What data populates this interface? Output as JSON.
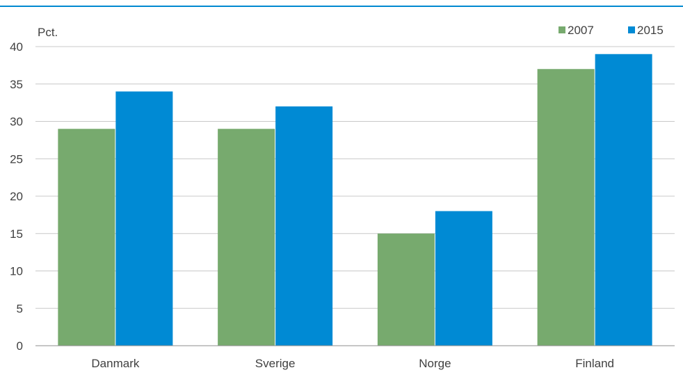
{
  "colors": {
    "top_rule": "#0089d0",
    "grid": "#c8c8c8",
    "axis": "#8c8c8c",
    "text": "#404040"
  },
  "chart_data": {
    "type": "bar",
    "title": "",
    "xlabel": "",
    "ylabel": "Pct.",
    "categories": [
      "Danmark",
      "Sverige",
      "Norge",
      "Finland"
    ],
    "series": [
      {
        "name": "2007",
        "color": "#77aa6e",
        "values": [
          29,
          29,
          15,
          37
        ]
      },
      {
        "name": "2015",
        "color": "#008ad4",
        "values": [
          34,
          32,
          18,
          39
        ]
      }
    ],
    "ylim": [
      0,
      40
    ],
    "yticks": [
      0,
      5,
      10,
      15,
      20,
      25,
      30,
      35,
      40
    ],
    "grid": true,
    "legend_position": "top-right"
  }
}
